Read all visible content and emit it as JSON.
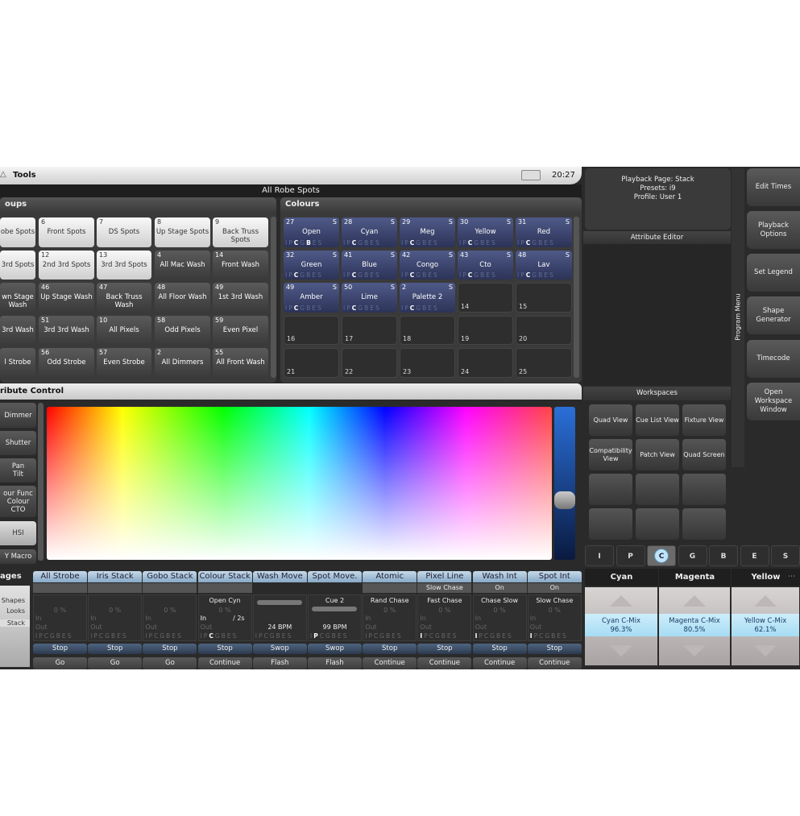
{
  "topbar": {
    "tools_label": "Tools",
    "time": "20:27"
  },
  "title": "All Robe Spots",
  "groups": {
    "header": "oups",
    "tiles": [
      {
        "num": "",
        "label": "obe Spots",
        "style": "light"
      },
      {
        "num": "6",
        "label": "Front Spots",
        "style": "light"
      },
      {
        "num": "7",
        "label": "DS Spots",
        "style": "light"
      },
      {
        "num": "8",
        "label": "Up Stage Spots",
        "style": "light"
      },
      {
        "num": "9",
        "label": "Back Truss Spots",
        "style": "light"
      },
      {
        "num": "",
        "label": "3rd Spots",
        "style": "light"
      },
      {
        "num": "12",
        "label": "2nd 3rd Spots",
        "style": "light"
      },
      {
        "num": "13",
        "label": "3rd 3rd Spots",
        "style": "light"
      },
      {
        "num": "4",
        "label": "All Mac Wash",
        "style": "dark"
      },
      {
        "num": "14",
        "label": "Front Wash",
        "style": "dark"
      },
      {
        "num": "",
        "label": "wn Stage Wash",
        "style": "dark"
      },
      {
        "num": "46",
        "label": "Up Stage Wash",
        "style": "dark"
      },
      {
        "num": "47",
        "label": "Back Truss Wash",
        "style": "dark"
      },
      {
        "num": "48",
        "label": "All Floor Wash",
        "style": "dark"
      },
      {
        "num": "49",
        "label": "1st 3rd Wash",
        "style": "dark"
      },
      {
        "num": "",
        "label": "3rd Wash",
        "style": "dark"
      },
      {
        "num": "51",
        "label": "3rd 3rd Wash",
        "style": "dark"
      },
      {
        "num": "10",
        "label": "All Pixels",
        "style": "dark"
      },
      {
        "num": "58",
        "label": "Odd Pixels",
        "style": "dark"
      },
      {
        "num": "59",
        "label": "Even Pixel",
        "style": "dark"
      },
      {
        "num": "",
        "label": "l Strobe",
        "style": "dark"
      },
      {
        "num": "56",
        "label": "Odd Strobe",
        "style": "dark"
      },
      {
        "num": "57",
        "label": "Even Strobe",
        "style": "dark"
      },
      {
        "num": "2",
        "label": "All Dimmers",
        "style": "dark"
      },
      {
        "num": "55",
        "label": "All Front Wash",
        "style": "dark"
      }
    ]
  },
  "colours": {
    "header": "Colours",
    "letters": "IPCGBES",
    "tiles": [
      {
        "num": "27",
        "label": "Open",
        "s": "S",
        "active": "CB"
      },
      {
        "num": "28",
        "label": "Cyan",
        "s": "S",
        "active": "C"
      },
      {
        "num": "29",
        "label": "Meg",
        "s": "S",
        "active": "C"
      },
      {
        "num": "30",
        "label": "Yellow",
        "s": "S",
        "active": "C"
      },
      {
        "num": "31",
        "label": "Red",
        "s": "S",
        "active": "C"
      },
      {
        "num": "32",
        "label": "Green",
        "s": "S",
        "active": "C"
      },
      {
        "num": "41",
        "label": "Blue",
        "s": "S",
        "active": "C"
      },
      {
        "num": "42",
        "label": "Congo",
        "s": "S",
        "active": "C"
      },
      {
        "num": "43",
        "label": "Cto",
        "s": "S",
        "active": "C"
      },
      {
        "num": "48",
        "label": "Lav",
        "s": "S",
        "active": "C"
      },
      {
        "num": "49",
        "label": "Amber",
        "s": "S",
        "active": "C"
      },
      {
        "num": "50",
        "label": "Lime",
        "s": "S",
        "active": "C"
      },
      {
        "num": "2",
        "label": "Palette 2",
        "s": "S",
        "active": "C"
      },
      {
        "num": "14",
        "label": ""
      },
      {
        "num": "15",
        "label": ""
      },
      {
        "num": "16",
        "label": ""
      },
      {
        "num": "17",
        "label": ""
      },
      {
        "num": "18",
        "label": ""
      },
      {
        "num": "19",
        "label": ""
      },
      {
        "num": "20",
        "label": ""
      },
      {
        "num": "21",
        "label": ""
      },
      {
        "num": "22",
        "label": ""
      },
      {
        "num": "23",
        "label": ""
      },
      {
        "num": "24",
        "label": ""
      },
      {
        "num": "25",
        "label": ""
      }
    ]
  },
  "attribute_control": {
    "header": "ribute Control",
    "buttons": [
      "Dimmer",
      "Shutter",
      "Pan\nTilt",
      "our Func\nColour\nCTO",
      "HSI",
      "Y Macro"
    ],
    "selected": "HSI"
  },
  "pages": {
    "header": "ages",
    "items": [
      "Shapes",
      "Looks",
      "Stack"
    ]
  },
  "playbacks": [
    {
      "title": "All Strobe",
      "sub": "",
      "cue": "",
      "level": "0 %",
      "in": "In",
      "out": "Out",
      "active": "",
      "stop": "Stop",
      "go": "Go"
    },
    {
      "title": "Iris Stack",
      "sub": "",
      "cue": "",
      "level": "0 %",
      "in": "In",
      "out": "Out",
      "active": "",
      "stop": "Stop",
      "go": "Go"
    },
    {
      "title": "Gobo Stack",
      "sub": "",
      "cue": "",
      "level": "0 %",
      "in": "In",
      "out": "Out",
      "active": "",
      "stop": "Stop",
      "go": "Go"
    },
    {
      "title": "Colour Stack",
      "sub": "",
      "cue": "Open Cyn",
      "level": "0 %",
      "in": "In",
      "time": "/ 2s",
      "out": "Out",
      "active": "C",
      "stop": "Stop",
      "go": "Continue"
    },
    {
      "title": "Wash Move",
      "sub": "",
      "cue": "",
      "bpm": "24 BPM",
      "active": "",
      "stop": "Swop",
      "go": "Flash",
      "fx": true
    },
    {
      "title": "Spot Move.",
      "sub": "",
      "cue": "Cue  2",
      "bpm": "99 BPM",
      "active": "P",
      "stop": "Swop",
      "go": "Flash",
      "fx": true
    },
    {
      "title": "Atomic",
      "sub": "",
      "cue": "Rand Chase",
      "level": "0 %",
      "in": "In",
      "out": "Out",
      "active": "",
      "stop": "Stop",
      "go": "Continue"
    },
    {
      "title": "Pixel Line",
      "sub": "Slow Chase",
      "cue": "Fast Chase",
      "level": "0 %",
      "in": "In",
      "out": "Out",
      "active": "I",
      "stop": "Stop",
      "go": "Continue"
    },
    {
      "title": "Wash Int",
      "sub": "On",
      "cue": "Chase Slow",
      "level": "0 %",
      "in": "In",
      "out": "Out",
      "active": "I",
      "stop": "Stop",
      "go": "Continue"
    },
    {
      "title": "Spot Int",
      "sub": "On",
      "cue": "Slow Chase",
      "level": "0 %",
      "in": "In",
      "out": "Out",
      "active": "I",
      "stop": "Stop",
      "go": "Continue"
    }
  ],
  "info": {
    "line1": "Playback Page: Stack",
    "line2": "Presets: i9",
    "line3": "Profile: User 1"
  },
  "attribute_editor": {
    "header": "Attribute Editor"
  },
  "workspaces": {
    "header": "Workspaces",
    "buttons": [
      "Quad View",
      "Cue List View",
      "Fixture View",
      "Compatibility View",
      "Patch View",
      "Quad Screen",
      "",
      "",
      "",
      "",
      "",
      ""
    ]
  },
  "program_menu": {
    "label": "Program Menu",
    "buttons": [
      "Edit Times",
      "Playback Options",
      "Set Legend",
      "Shape Generator",
      "Timecode",
      "Open Workspace Window"
    ]
  },
  "attr_tabs": {
    "tabs": [
      "I",
      "P",
      "C",
      "G",
      "B",
      "E",
      "S"
    ],
    "selected": "C"
  },
  "encoders": [
    {
      "header": "Cyan",
      "name": "Cyan C-Mix",
      "value": "96.3%",
      "level": 96.3
    },
    {
      "header": "Magenta",
      "name": "Magenta C-Mix",
      "value": "80.5%",
      "level": 80.5
    },
    {
      "header": "Yellow",
      "name": "Yellow C-Mix",
      "value": "62.1%",
      "level": 62.1
    }
  ],
  "colors": {
    "accent_blue": "#2c3358",
    "playback_title": "#a8c4dc",
    "encoder_band": "#b8e4f6"
  }
}
